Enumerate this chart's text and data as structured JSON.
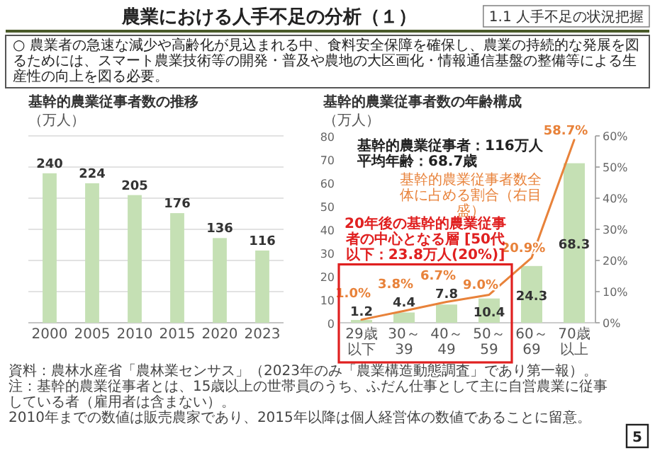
{
  "chart_data": [
    {
      "type": "bar",
      "title": "基幹的農業従事者数の推移",
      "ylabel": "（万人）",
      "categories": [
        "2000",
        "2005",
        "2010",
        "2015",
        "2020",
        "2023"
      ],
      "values": [
        240,
        224,
        205,
        176,
        136,
        116
      ],
      "color": "#c5e0b4",
      "data_labels": true,
      "ylim": [
        0,
        300
      ],
      "yticks": [
        {
          "value": 0,
          "label": null
        },
        {
          "value": 50,
          "label": null
        },
        {
          "value": 100,
          "label": null
        },
        {
          "value": 150,
          "label": null
        },
        {
          "value": 200,
          "label": null
        },
        {
          "value": 250,
          "label": null
        },
        {
          "value": 300,
          "label": null
        }
      ],
      "grid": "y",
      "tick_labels": "x",
      "annotations": [
        "農業における人手不足の分析（１）",
        "1.1 人手不足の状況把握",
        "○ 農業者の急速な減少や高齢化が見込まれる中、食料安全保障を確保し、農業の持続的な発展を図るためには、スマート農業技術等の開発・普及や農地の大区画化・情報通信基盤の整備等による生産性の向上を図る必要。",
        "資料：農林水産省「農林業センサス」（2023年のみ「農業構造動態調査」であり第一報）。",
        "注：基幹的農業従事者とは、15歳以上の世帯員のうち、ふだん仕事として主に自営農業に従事している者（雇用者は含まない）。",
        "2010年までの数値は販売農家であり、2015年以降は個人経営体の数値であることに留意。",
        "5"
      ]
    },
    {
      "type": "bar",
      "title": "基幹的農業従事者数の年齢構成",
      "ylabel": "（万人）",
      "categories": [
        "29歳以下",
        "30～39",
        "40～49",
        "50～59",
        "60～69",
        "70歳以上"
      ],
      "series": [
        {
          "type": "bar",
          "color": "#c5e0b4",
          "values": [
            1.2,
            4.4,
            7.8,
            10.4,
            24.3,
            68.3
          ],
          "value_labels": [
            "1.2",
            "4.4",
            "7.8",
            "10.4",
            "24.3",
            "68.3"
          ]
        },
        {
          "type": "line",
          "axis": "y2",
          "color": "#e8823a",
          "values": [
            1.0,
            3.8,
            6.7,
            9.0,
            20.9,
            58.7
          ],
          "value_labels": [
            "1.0%",
            "3.8%",
            "6.7%",
            "9.0%",
            "20.9%",
            "58.7%"
          ]
        }
      ],
      "ylim": [
        0,
        80
      ],
      "yticks": [
        0,
        10,
        20,
        30,
        40,
        50,
        60,
        70,
        80
      ],
      "y2lim": [
        0,
        60
      ],
      "y2ticks": [
        {
          "value": 0,
          "label": "0%"
        },
        {
          "value": 10,
          "label": "10%"
        },
        {
          "value": 20,
          "label": "20%"
        },
        {
          "value": 30,
          "label": "30%"
        },
        {
          "value": 40,
          "label": "40%"
        },
        {
          "value": 50,
          "label": "50%"
        },
        {
          "value": 60,
          "label": "60%"
        }
      ],
      "annotations": [
        "基幹的農業従事者：116万人",
        "平均年齢：68.7歳",
        "基幹的農業従事者数全体に占める割合（右目盛）",
        "20年後の基幹的農業従事者の中心となる層 [50代以下：23.8万人(20%)]"
      ]
    }
  ]
}
